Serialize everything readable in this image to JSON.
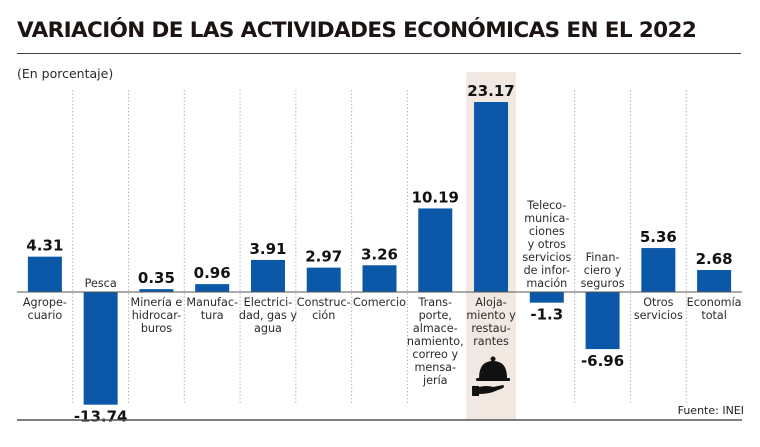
{
  "header": {
    "title": "VARIACIÓN DE LAS ACTIVIDADES ECONÓMICAS EN EL 2022",
    "subtitle": "(En porcentaje)"
  },
  "source": "Fuente: INEI",
  "colors": {
    "bar": "#0b57a8",
    "highlight_bg": "#f1e9e1",
    "text": "#1b1413"
  },
  "chart_data": {
    "type": "bar",
    "title": "VARIACIÓN DE LAS ACTIVIDADES ECONÓMICAS EN EL 2022",
    "subtitle": "(En porcentaje)",
    "xlabel": "",
    "ylabel": "",
    "categories": [
      "Agropecuario",
      "Pesca",
      "Minería e hidrocarburos",
      "Manufactura",
      "Electricidad, gas y agua",
      "Construcción",
      "Comercio",
      "Transporte, almacenamiento, correo y mensajería",
      "Alojamiento y restaurantes",
      "Telecomunicaciones y otros servicios de información",
      "Financiero y seguros",
      "Otros servicios",
      "Economía total"
    ],
    "category_lines": [
      [
        "Agrope-",
        "cuario"
      ],
      [
        "Pesca"
      ],
      [
        "Minería e",
        "hidrocar-",
        "buros"
      ],
      [
        "Manufac-",
        "tura"
      ],
      [
        "Electrici-",
        "dad, gas y",
        "agua"
      ],
      [
        "Construc-",
        "ción"
      ],
      [
        "Comercio"
      ],
      [
        "Trans-",
        "porte,",
        "almace-",
        "namiento,",
        "correo y",
        "mensa-",
        "jería"
      ],
      [
        "Aloja-",
        "miento y",
        "restau-",
        "rantes"
      ],
      [
        "Teleco-",
        "munica-",
        "ciones",
        "y otros",
        "servicios",
        "de infor-",
        "mación"
      ],
      [
        "Finan-",
        "ciero y",
        "seguros"
      ],
      [
        "Otros",
        "servicios"
      ],
      [
        "Economía",
        "total"
      ]
    ],
    "values": [
      4.31,
      -13.74,
      0.35,
      0.96,
      3.91,
      2.97,
      3.26,
      10.19,
      23.17,
      -1.3,
      -6.96,
      5.36,
      2.68
    ],
    "value_labels": [
      "4.31",
      "-13.74",
      "0.35",
      "0.96",
      "3.91",
      "2.97",
      "3.26",
      "10.19",
      "23.17",
      "-1.3",
      "-6.96",
      "5.36",
      "2.68"
    ],
    "highlighted": "Alojamiento y restaurantes",
    "highlight_icon": "serving-cloche-icon",
    "unit": "%",
    "grid": false,
    "legend": "none"
  }
}
